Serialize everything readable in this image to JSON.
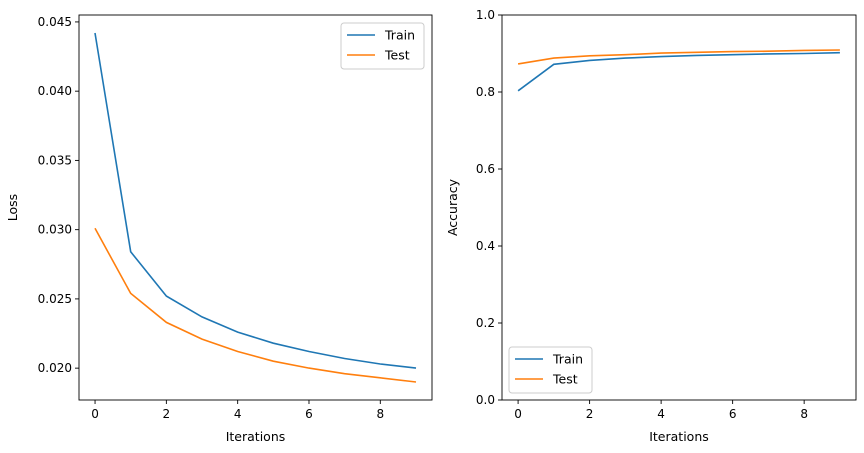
{
  "chart_data": [
    {
      "type": "line",
      "title": "",
      "xlabel": "Iterations",
      "ylabel": "Loss",
      "x": [
        0,
        1,
        2,
        3,
        4,
        5,
        6,
        7,
        8,
        9
      ],
      "xlim": [
        -0.45,
        9.45
      ],
      "ylim": [
        0.0177,
        0.0455
      ],
      "xticks": [
        0,
        2,
        4,
        6,
        8
      ],
      "xtick_labels": [
        "0",
        "2",
        "4",
        "6",
        "8"
      ],
      "yticks": [
        0.02,
        0.025,
        0.03,
        0.035,
        0.04,
        0.045
      ],
      "ytick_labels": [
        "0.020",
        "0.025",
        "0.030",
        "0.035",
        "0.040",
        "0.045"
      ],
      "grid": false,
      "legend_position": "top-right",
      "series": [
        {
          "name": "Train",
          "color": "#1f77b4",
          "values": [
            0.0442,
            0.0284,
            0.0252,
            0.0237,
            0.0226,
            0.0218,
            0.0212,
            0.0207,
            0.0203,
            0.02
          ]
        },
        {
          "name": "Test",
          "color": "#ff7f0e",
          "values": [
            0.0301,
            0.0254,
            0.0233,
            0.0221,
            0.0212,
            0.0205,
            0.02,
            0.0196,
            0.0193,
            0.019
          ]
        }
      ]
    },
    {
      "type": "line",
      "title": "",
      "xlabel": "Iterations",
      "ylabel": "Accuracy",
      "x": [
        0,
        1,
        2,
        3,
        4,
        5,
        6,
        7,
        8,
        9
      ],
      "xlim": [
        -0.45,
        9.45
      ],
      "ylim": [
        0,
        1
      ],
      "xticks": [
        0,
        2,
        4,
        6,
        8
      ],
      "xtick_labels": [
        "0",
        "2",
        "4",
        "6",
        "8"
      ],
      "yticks": [
        0,
        0.2,
        0.4,
        0.6,
        0.8,
        1.0
      ],
      "ytick_labels": [
        "0.0",
        "0.2",
        "0.4",
        "0.6",
        "0.8",
        "1.0"
      ],
      "grid": false,
      "legend_position": "bottom-left",
      "series": [
        {
          "name": "Train",
          "color": "#1f77b4",
          "values": [
            0.803,
            0.872,
            0.882,
            0.888,
            0.892,
            0.895,
            0.897,
            0.899,
            0.9,
            0.902
          ]
        },
        {
          "name": "Test",
          "color": "#ff7f0e",
          "values": [
            0.873,
            0.888,
            0.894,
            0.897,
            0.901,
            0.903,
            0.905,
            0.906,
            0.908,
            0.909
          ]
        }
      ]
    }
  ]
}
